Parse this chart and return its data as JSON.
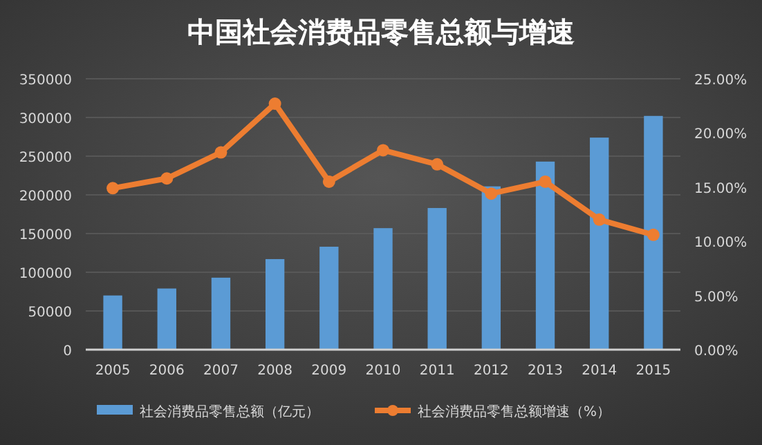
{
  "chart_data": {
    "type": "bar",
    "title": "中国社会消费品零售总额与增速",
    "categories": [
      "2005",
      "2006",
      "2007",
      "2008",
      "2009",
      "2010",
      "2011",
      "2012",
      "2013",
      "2014",
      "2015"
    ],
    "series": [
      {
        "name": "社会消费品零售总额（亿元）",
        "color": "#5b9bd5",
        "values": [
          70000,
          79000,
          93000,
          117000,
          133000,
          157000,
          183000,
          211000,
          243000,
          274000,
          302000
        ]
      },
      {
        "name": "社会消费品零售总额增速（%）",
        "type": "line",
        "axis": "y2",
        "color": "#ed7d31",
        "marker": "circle",
        "values": [
          14.9,
          15.8,
          18.2,
          22.7,
          15.5,
          18.4,
          17.1,
          14.4,
          15.5,
          12.0,
          10.6
        ]
      }
    ],
    "ylim": [
      0,
      350000
    ],
    "yticks": [
      0,
      50000,
      100000,
      150000,
      200000,
      250000,
      300000,
      350000
    ],
    "y2lim": [
      0,
      25
    ],
    "y2ticks": [
      {
        "value": 0,
        "label": "0.00%"
      },
      {
        "value": 5,
        "label": "5.00%"
      },
      {
        "value": 10,
        "label": "10.00%"
      },
      {
        "value": 15,
        "label": "15.00%"
      },
      {
        "value": 20,
        "label": "20.00%"
      },
      {
        "value": 25,
        "label": "25.00%"
      }
    ],
    "grid": "y",
    "legend": "bottom"
  }
}
